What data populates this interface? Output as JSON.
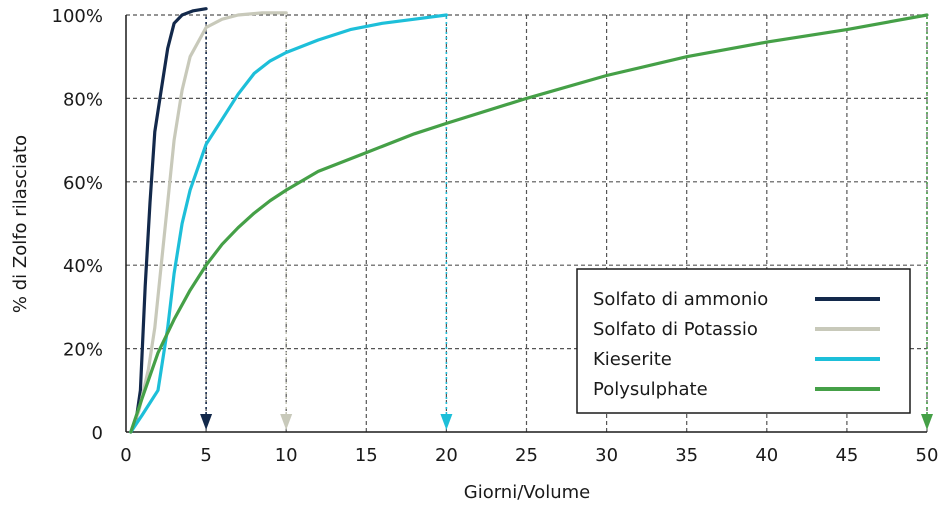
{
  "chart_data": {
    "type": "line",
    "xlabel": "Giorni/Volume",
    "ylabel": "% di Zolfo rilasciato",
    "xlim": [
      0,
      50
    ],
    "ylim": [
      0,
      100
    ],
    "x_ticks": [
      "0",
      "5",
      "10",
      "15",
      "20",
      "25",
      "30",
      "35",
      "40",
      "45",
      "50"
    ],
    "x_tick_values": [
      0,
      5,
      10,
      15,
      20,
      25,
      30,
      35,
      40,
      45,
      50
    ],
    "y_ticks": [
      "0",
      "20%",
      "40%",
      "60%",
      "80%",
      "100%"
    ],
    "y_tick_values": [
      0,
      20,
      40,
      60,
      80,
      100
    ],
    "grid": true,
    "legend_position": "bottom-right",
    "series": [
      {
        "name": "Solfato di ammonio",
        "color": "#13294b",
        "end_x": 5,
        "points": [
          [
            0.3,
            0
          ],
          [
            0.6,
            2
          ],
          [
            0.9,
            10
          ],
          [
            1.2,
            35
          ],
          [
            1.5,
            55
          ],
          [
            1.8,
            72
          ],
          [
            2.2,
            82
          ],
          [
            2.6,
            92
          ],
          [
            3,
            98
          ],
          [
            3.5,
            100
          ],
          [
            4.2,
            101
          ],
          [
            5,
            101.5
          ]
        ]
      },
      {
        "name": "Solfato di Potassio",
        "color": "#c8c9ba",
        "end_x": 10,
        "points": [
          [
            0.3,
            0
          ],
          [
            0.8,
            5
          ],
          [
            1.4,
            15
          ],
          [
            1.8,
            25
          ],
          [
            2.2,
            40
          ],
          [
            2.6,
            55
          ],
          [
            3,
            70
          ],
          [
            3.5,
            82
          ],
          [
            4,
            90
          ],
          [
            5,
            97
          ],
          [
            6,
            99
          ],
          [
            7,
            100
          ],
          [
            8.5,
            100.5
          ],
          [
            10,
            100.5
          ]
        ]
      },
      {
        "name": "Kieserite",
        "color": "#1dbfd9",
        "end_x": 20,
        "points": [
          [
            0.3,
            0
          ],
          [
            1,
            4
          ],
          [
            2,
            10
          ],
          [
            2.6,
            25
          ],
          [
            3,
            38
          ],
          [
            3.5,
            50
          ],
          [
            4,
            58
          ],
          [
            5,
            69
          ],
          [
            6,
            75
          ],
          [
            7,
            81
          ],
          [
            8,
            86
          ],
          [
            9,
            89
          ],
          [
            10,
            91
          ],
          [
            12,
            94
          ],
          [
            14,
            96.5
          ],
          [
            16,
            98
          ],
          [
            18,
            99
          ],
          [
            20,
            100
          ]
        ]
      },
      {
        "name": "Polysulphate",
        "color": "#45a047",
        "end_x": 50,
        "points": [
          [
            0.3,
            0
          ],
          [
            1,
            8
          ],
          [
            2,
            19
          ],
          [
            3,
            27
          ],
          [
            4,
            34
          ],
          [
            5,
            40
          ],
          [
            6,
            45
          ],
          [
            7,
            49
          ],
          [
            8,
            52.5
          ],
          [
            9,
            55.5
          ],
          [
            10,
            58
          ],
          [
            12,
            62.5
          ],
          [
            15,
            67
          ],
          [
            18,
            71.5
          ],
          [
            20,
            74
          ],
          [
            25,
            80
          ],
          [
            30,
            85.5
          ],
          [
            35,
            90
          ],
          [
            40,
            93.5
          ],
          [
            45,
            96.5
          ],
          [
            50,
            100
          ]
        ]
      }
    ]
  }
}
